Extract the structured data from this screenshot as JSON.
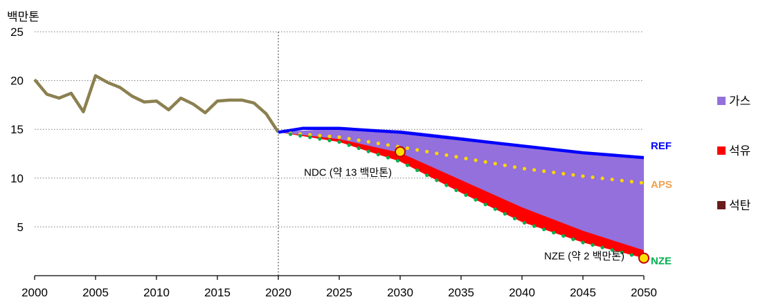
{
  "chart_data": {
    "type": "area",
    "ylabel": "백만톤",
    "xlim": [
      2000,
      2050
    ],
    "ylim": [
      0,
      25
    ],
    "x_ticks": [
      "2000",
      "2005",
      "2010",
      "2015",
      "2020",
      "2025",
      "2030",
      "2035",
      "2040",
      "2045",
      "2050"
    ],
    "y_ticks": [
      "5",
      "10",
      "15",
      "20",
      "25"
    ],
    "grid": "horizontal dotted",
    "legend_position": "right",
    "legend": [
      {
        "label": "가스",
        "color": "#9370db"
      },
      {
        "label": "석유",
        "color": "#ff0000"
      },
      {
        "label": "석탄",
        "color": "#6b1a1a"
      }
    ],
    "historical": {
      "color": "#8b8050",
      "x": [
        2000,
        2001,
        2002,
        2003,
        2004,
        2005,
        2006,
        2007,
        2008,
        2009,
        2010,
        2011,
        2012,
        2013,
        2014,
        2015,
        2016,
        2017,
        2018,
        2019,
        2020
      ],
      "y": [
        20.1,
        18.6,
        18.2,
        18.7,
        16.8,
        20.5,
        19.8,
        19.3,
        18.4,
        17.8,
        17.9,
        17.0,
        18.2,
        17.6,
        16.7,
        17.9,
        18.0,
        18.0,
        17.7,
        16.6,
        14.7
      ]
    },
    "scenarios": [
      {
        "name": "REF",
        "color": "#0000ff",
        "x": [
          2020,
          2022,
          2025,
          2030,
          2035,
          2040,
          2045,
          2050
        ],
        "y": [
          14.7,
          15.1,
          15.1,
          14.7,
          14.0,
          13.3,
          12.6,
          12.1
        ]
      },
      {
        "name": "APS",
        "color": "#ffd700",
        "label_color": "#f0a050",
        "x": [
          2020,
          2025,
          2030,
          2035,
          2040,
          2045,
          2050
        ],
        "y": [
          14.7,
          14.2,
          13.2,
          12.1,
          11.0,
          10.2,
          9.5
        ]
      },
      {
        "name": "NZE",
        "color": "#00b050",
        "x": [
          2020,
          2025,
          2030,
          2035,
          2040,
          2045,
          2050
        ],
        "y": [
          14.7,
          13.7,
          11.7,
          8.5,
          5.5,
          3.4,
          1.8
        ]
      }
    ],
    "stack_areas": [
      {
        "name": "석유",
        "color": "#ff0000",
        "x": [
          2020,
          2025,
          2030,
          2035,
          2040,
          2045,
          2050
        ],
        "lower": [
          14.7,
          13.7,
          11.7,
          8.5,
          5.5,
          3.4,
          1.8
        ],
        "upper": [
          14.7,
          15.05,
          14.6,
          13.7,
          12.7,
          11.6,
          10.6
        ]
      },
      {
        "name": "가스",
        "color": "#9370db",
        "x": [
          2020,
          2025,
          2030,
          2035,
          2040,
          2045,
          2050
        ],
        "lower": [
          14.7,
          14.0,
          12.6,
          9.8,
          7.0,
          4.6,
          2.6
        ],
        "upper": [
          14.7,
          15.1,
          14.9,
          14.2,
          13.4,
          12.7,
          12.1
        ]
      }
    ],
    "markers": [
      {
        "label": "NDC (약 13 백만톤)",
        "x": 2030,
        "y": 12.7
      },
      {
        "label": "NZE (약 2 백만톤)",
        "x": 2050,
        "y": 1.8
      }
    ],
    "divider_year": 2020
  }
}
